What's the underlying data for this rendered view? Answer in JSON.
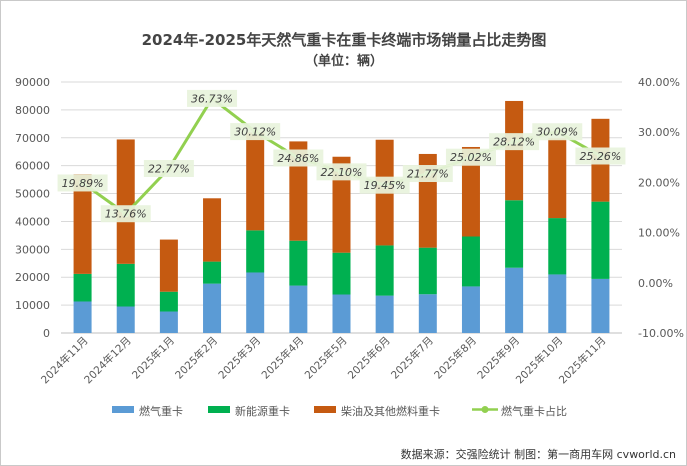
{
  "chart_data": {
    "type": "bar",
    "stacked": true,
    "title": "2024年-2025年天然气重卡在重卡终端市场销量占比走势图",
    "subtitle": "（单位：辆）",
    "categories": [
      "2024年11月",
      "2024年12月",
      "2025年1月",
      "2025年2月",
      "2025年3月",
      "2025年4月",
      "2025年5月",
      "2025年6月",
      "2025年7月",
      "2025年8月",
      "2025年9月",
      "2025年10月",
      "2025年11月"
    ],
    "series": [
      {
        "name": "燃气重卡",
        "color": "#5b9bd5",
        "values": [
          11300,
          9500,
          7700,
          17700,
          21700,
          17000,
          13800,
          13400,
          13900,
          16700,
          23400,
          21000,
          19400
        ]
      },
      {
        "name": "新能源重卡",
        "color": "#00b050",
        "values": [
          9900,
          15300,
          7100,
          7900,
          15100,
          16100,
          15000,
          18000,
          16700,
          17900,
          24200,
          20200,
          27700
        ]
      },
      {
        "name": "柴油及其他燃料重卡",
        "color": "#c55a11",
        "values": [
          35700,
          44600,
          18700,
          22700,
          35100,
          35600,
          34400,
          37900,
          33600,
          32100,
          35600,
          28600,
          29700
        ]
      }
    ],
    "line_series": {
      "name": "燃气重卡占比",
      "color": "#92d050",
      "values": [
        19.89,
        13.76,
        22.77,
        36.73,
        30.12,
        24.86,
        22.1,
        19.45,
        21.77,
        25.02,
        28.12,
        30.09,
        25.26
      ],
      "labels": [
        "19.89%",
        "13.76%",
        "22.77%",
        "36.73%",
        "30.12%",
        "24.86%",
        "22.10%",
        "19.45%",
        "21.77%",
        "25.02%",
        "28.12%",
        "30.09%",
        "25.26%"
      ],
      "axis": "right"
    },
    "ylim_left": [
      0,
      90000
    ],
    "yticks_left": [
      "0",
      "10000",
      "20000",
      "30000",
      "40000",
      "50000",
      "60000",
      "70000",
      "80000",
      "90000"
    ],
    "ylim_right": [
      -10,
      40
    ],
    "yticks_right": [
      "-10.00%",
      "0.00%",
      "10.00%",
      "20.00%",
      "30.00%",
      "40.00%"
    ],
    "legend_position": "bottom",
    "grid": true,
    "source": "数据来源：交强险统计  制图：第一商用车网 cvworld.cn"
  }
}
